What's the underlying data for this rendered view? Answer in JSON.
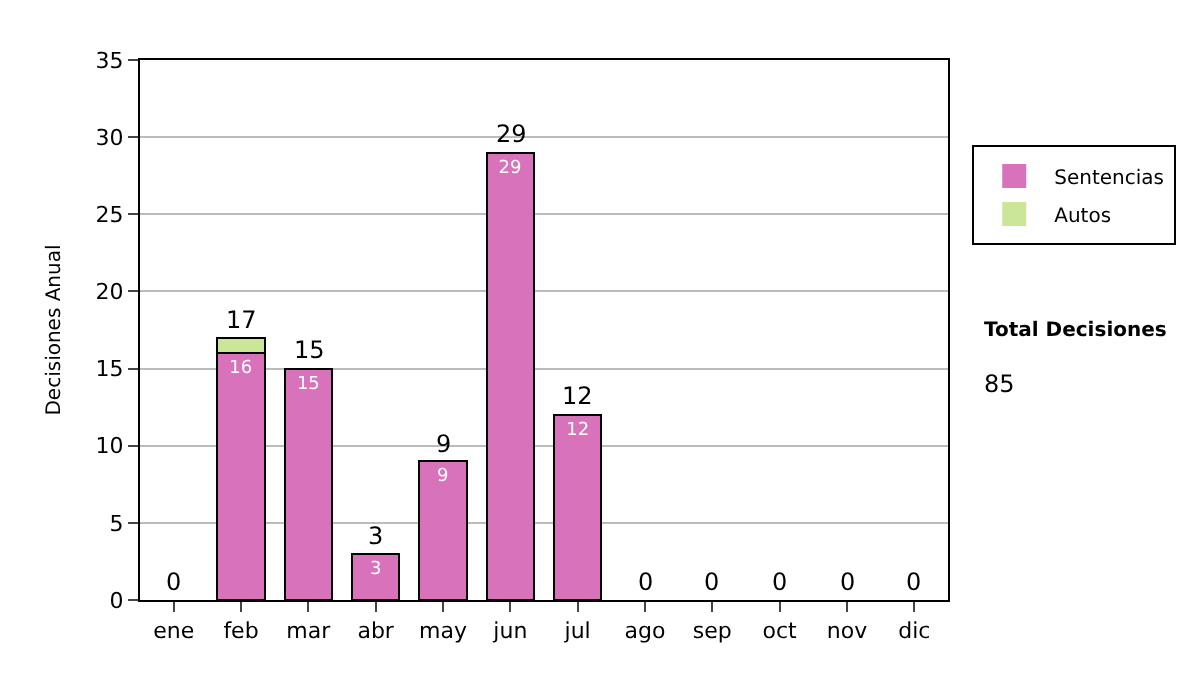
{
  "chart_data": {
    "type": "bar",
    "stacked": true,
    "ylabel": "Decisiones Anual",
    "categories": [
      "ene",
      "feb",
      "mar",
      "abr",
      "may",
      "jun",
      "jul",
      "ago",
      "sep",
      "oct",
      "nov",
      "dic"
    ],
    "series": [
      {
        "name": "Sentencias",
        "color": "#d873bb",
        "values": [
          0,
          16,
          15,
          3,
          9,
          29,
          12,
          0,
          0,
          0,
          0,
          0
        ],
        "value_labels": [
          null,
          "16",
          "15",
          "3",
          "9",
          "29",
          "12",
          null,
          null,
          null,
          null,
          null
        ]
      },
      {
        "name": "Autos",
        "color": "#cce699",
        "values": [
          0,
          1,
          0,
          0,
          0,
          0,
          0,
          0,
          0,
          0,
          0,
          0
        ]
      }
    ],
    "totals": [
      "0",
      "17",
      "15",
      "3",
      "9",
      "29",
      "12",
      "0",
      "0",
      "0",
      "0",
      "0"
    ],
    "ylim": [
      0,
      35
    ],
    "yticks": [
      0,
      5,
      10,
      15,
      20,
      25,
      30,
      35
    ],
    "grid": "y",
    "legend": "right",
    "annotations": [
      "Total Decisiones",
      "85"
    ]
  }
}
